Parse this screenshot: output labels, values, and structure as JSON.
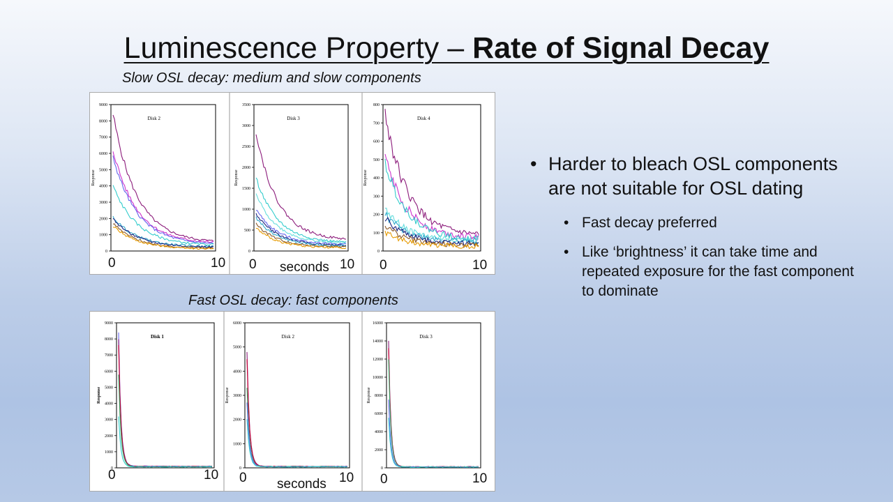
{
  "slide": {
    "title_regular": "Luminescence Property – ",
    "title_bold": "Rate of Signal Decay",
    "slow_subtitle": "Slow OSL decay: medium and slow components",
    "fast_subtitle": "Fast OSL decay: fast components",
    "bullets": {
      "main": "Harder to bleach OSL components are not suitable for OSL dating",
      "sub1": "Fast decay preferred",
      "sub2": "Like ‘brightness’ it can take time and repeated exposure for the fast component to dominate"
    }
  },
  "annotations": {
    "x_zero": "0",
    "x_ten": "10",
    "x_unit": "seconds"
  },
  "chart_data": [
    {
      "type": "line",
      "title": "Disk 2",
      "ylabel": "Response",
      "ylim": [
        0,
        9000
      ],
      "yticks": [
        "0",
        "1000",
        "2000",
        "3000",
        "4000",
        "5000",
        "6000",
        "7000",
        "8000",
        "9000"
      ],
      "decay": "slow",
      "series": [
        {
          "color": "#8b1a7a",
          "start": 8400,
          "end": 500
        },
        {
          "color": "#cc33cc",
          "start": 6200,
          "end": 450
        },
        {
          "color": "#6666ee",
          "start": 5800,
          "end": 380
        },
        {
          "color": "#33cccc",
          "start": 4000,
          "end": 330
        },
        {
          "color": "#33aacc",
          "start": 2100,
          "end": 250
        },
        {
          "color": "#1a237e",
          "start": 2000,
          "end": 220
        },
        {
          "color": "#8b5a2b",
          "start": 1700,
          "end": 150
        },
        {
          "color": "#e69a00",
          "start": 1550,
          "end": 120
        }
      ]
    },
    {
      "type": "line",
      "title": "Disk 3",
      "ylabel": "Response",
      "ylim": [
        0,
        3500
      ],
      "yticks": [
        "0",
        "500",
        "1000",
        "1500",
        "2000",
        "2500",
        "3000",
        "3500"
      ],
      "decay": "slow",
      "series": [
        {
          "color": "#8b1a7a",
          "start": 2850,
          "end": 250
        },
        {
          "color": "#33cccc",
          "start": 1750,
          "end": 190
        },
        {
          "color": "#66dddd",
          "start": 1350,
          "end": 170
        },
        {
          "color": "#6666ee",
          "start": 1000,
          "end": 150
        },
        {
          "color": "#1a237e",
          "start": 900,
          "end": 120
        },
        {
          "color": "#33aacc",
          "start": 800,
          "end": 110
        },
        {
          "color": "#8b5a2b",
          "start": 650,
          "end": 90
        },
        {
          "color": "#e69a00",
          "start": 550,
          "end": 70
        }
      ]
    },
    {
      "type": "line",
      "title": "Disk 4",
      "ylabel": "Response",
      "ylim": [
        0,
        800
      ],
      "yticks": [
        "0",
        "100",
        "200",
        "300",
        "400",
        "500",
        "600",
        "700",
        "800"
      ],
      "decay": "slow",
      "series": [
        {
          "color": "#8b1a7a",
          "start": 750,
          "end": 80
        },
        {
          "color": "#cc33cc",
          "start": 510,
          "end": 70
        },
        {
          "color": "#33cccc",
          "start": 480,
          "end": 60
        },
        {
          "color": "#66dddd",
          "start": 230,
          "end": 55
        },
        {
          "color": "#33aacc",
          "start": 200,
          "end": 50
        },
        {
          "color": "#1a237e",
          "start": 180,
          "end": 40
        },
        {
          "color": "#8b5a2b",
          "start": 140,
          "end": 30
        },
        {
          "color": "#e69a00",
          "start": 100,
          "end": 25
        }
      ]
    },
    {
      "type": "line",
      "title": "Disk 1",
      "ylabel": "Response",
      "ylim": [
        0,
        9000
      ],
      "yticks": [
        "0",
        "1000",
        "2000",
        "3000",
        "4000",
        "5000",
        "6000",
        "7000",
        "8000",
        "9000"
      ],
      "decay": "fast",
      "series": [
        {
          "color": "#6666ee",
          "start": 8400,
          "end": 100
        },
        {
          "color": "#8b1a7a",
          "start": 8000,
          "end": 90
        },
        {
          "color": "#cc0033",
          "start": 7600,
          "end": 80
        },
        {
          "color": "#33aa66",
          "start": 5800,
          "end": 70
        },
        {
          "color": "#33cccc",
          "start": 3200,
          "end": 60
        }
      ]
    },
    {
      "type": "line",
      "title": "Disk 2",
      "ylabel": "Response",
      "ylim": [
        0,
        6000
      ],
      "yticks": [
        "0",
        "1000",
        "2000",
        "3000",
        "4000",
        "5000",
        "6000"
      ],
      "decay": "fast",
      "series": [
        {
          "color": "#8b1a7a",
          "start": 4800,
          "end": 60
        },
        {
          "color": "#cc0033",
          "start": 4500,
          "end": 55
        },
        {
          "color": "#33aa66",
          "start": 3300,
          "end": 50
        },
        {
          "color": "#6666ee",
          "start": 2700,
          "end": 45
        },
        {
          "color": "#33cccc",
          "start": 2000,
          "end": 40
        }
      ]
    },
    {
      "type": "line",
      "title": "Disk 3",
      "ylabel": "Response",
      "ylim": [
        0,
        16000
      ],
      "yticks": [
        "0",
        "2000",
        "4000",
        "6000",
        "8000",
        "10000",
        "12000",
        "14000",
        "16000"
      ],
      "decay": "fast",
      "series": [
        {
          "color": "#8b1a7a",
          "start": 14000,
          "end": 120
        },
        {
          "color": "#cc0033",
          "start": 13200,
          "end": 110
        },
        {
          "color": "#33aa66",
          "start": 12000,
          "end": 100
        },
        {
          "color": "#6666ee",
          "start": 7500,
          "end": 90
        },
        {
          "color": "#33cccc",
          "start": 5500,
          "end": 80
        }
      ]
    }
  ]
}
